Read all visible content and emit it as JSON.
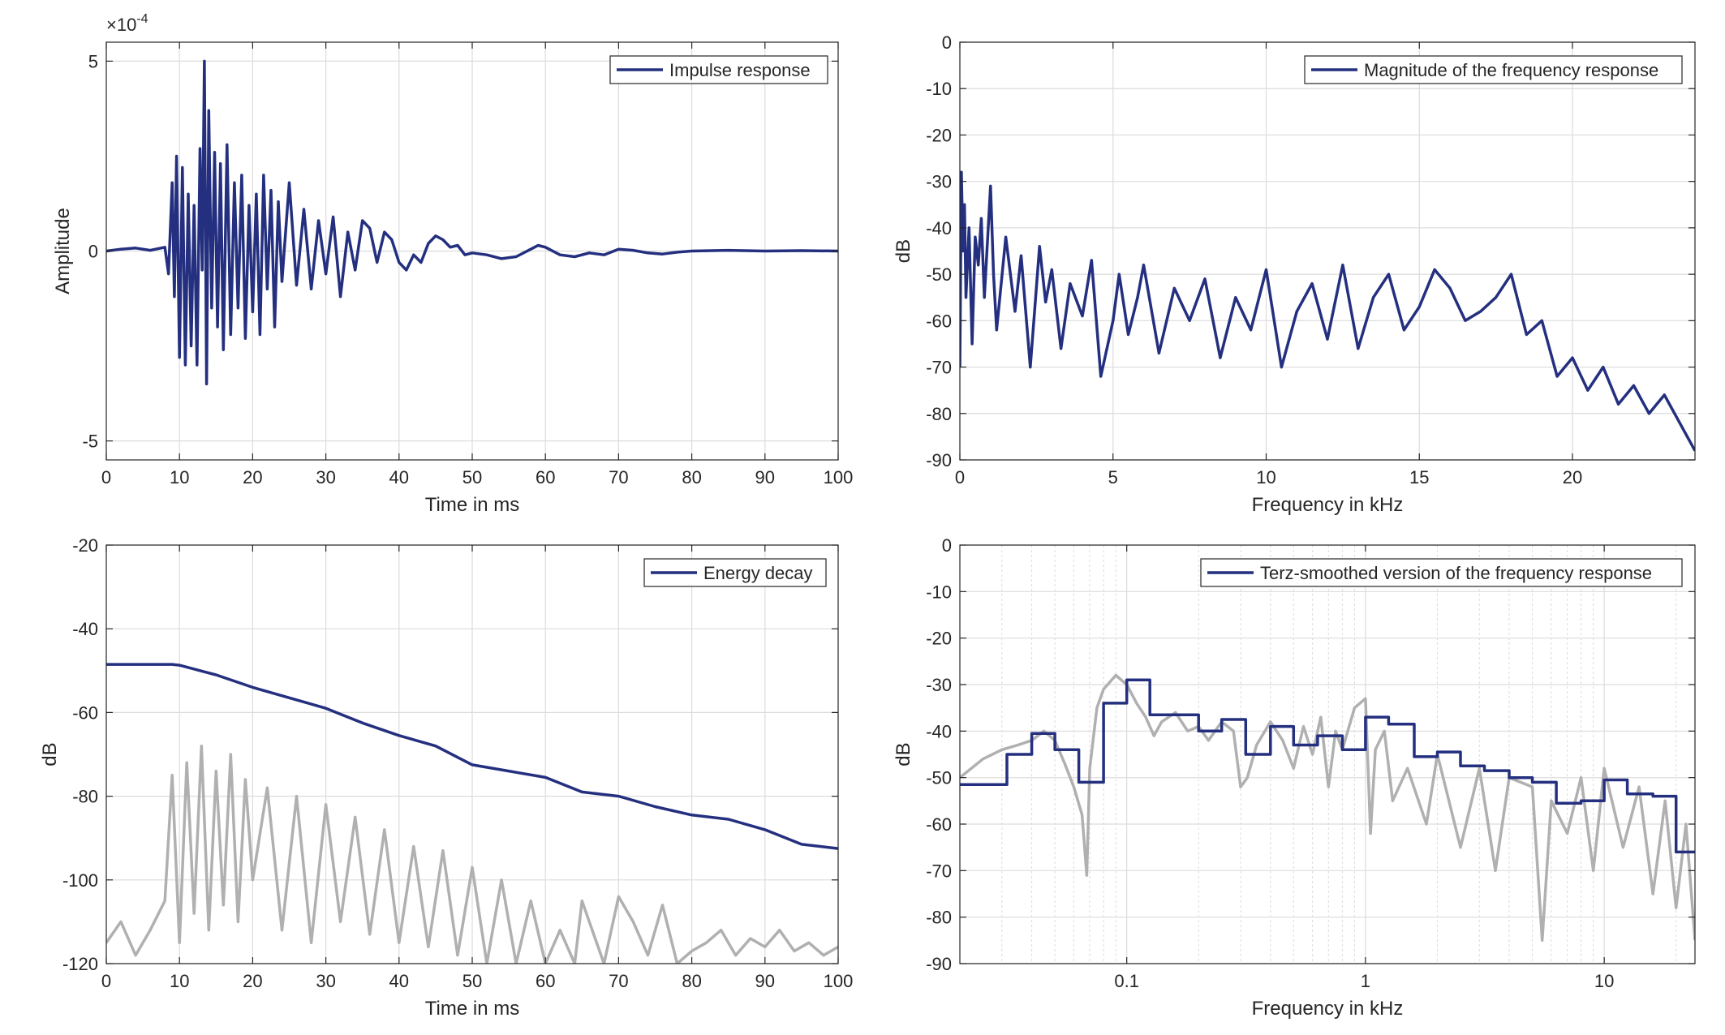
{
  "colors": {
    "series_main": "#24307f",
    "series_gray": "#b0b0b0",
    "grid": "#dcdcdc",
    "axis": "#262626"
  },
  "chart_data": [
    {
      "id": "impulse",
      "type": "line",
      "xlabel": "Time in ms",
      "ylabel": "Amplitude",
      "exponent_label": "×10",
      "exponent_power": "-4",
      "xlim": [
        0,
        100
      ],
      "ylim": [
        -5.5,
        5.5
      ],
      "xticks": [
        0,
        10,
        20,
        30,
        40,
        50,
        60,
        70,
        80,
        90,
        100
      ],
      "yticks": [
        -5,
        0,
        5
      ],
      "ytick_labels": [
        "-5",
        "0",
        "5"
      ],
      "legend": {
        "position": "top-right",
        "entries": [
          "Impulse response"
        ]
      },
      "series": [
        {
          "name": "Impulse response",
          "color_key": "series_main",
          "x": [
            0,
            2,
            4,
            6,
            8,
            8.5,
            9,
            9.3,
            9.6,
            10,
            10.4,
            10.8,
            11.2,
            11.6,
            12,
            12.4,
            12.8,
            13.1,
            13.4,
            13.7,
            14,
            14.4,
            14.8,
            15.2,
            15.6,
            16,
            16.5,
            17,
            17.5,
            18,
            18.5,
            19,
            19.5,
            20,
            20.5,
            21,
            21.5,
            22,
            22.5,
            23,
            23.5,
            24,
            25,
            26,
            27,
            28,
            29,
            30,
            31,
            32,
            33,
            34,
            35,
            36,
            37,
            38,
            39,
            40,
            41,
            42,
            43,
            44,
            45,
            46,
            47,
            48,
            49,
            50,
            52,
            54,
            56,
            58,
            59,
            60,
            62,
            64,
            66,
            68,
            70,
            72,
            74,
            76,
            78,
            80,
            85,
            90,
            95,
            100
          ],
          "y": [
            0,
            0.05,
            0.08,
            0.02,
            0.1,
            -0.6,
            1.8,
            -1.2,
            2.5,
            -2.8,
            2.2,
            -3.0,
            1.5,
            -2.5,
            1.2,
            -3.0,
            2.7,
            -0.5,
            5.0,
            -3.5,
            3.7,
            -1.5,
            2.6,
            -2.0,
            2.3,
            -2.6,
            2.8,
            -2.2,
            1.8,
            -1.5,
            2.0,
            -2.3,
            1.2,
            -1.6,
            1.5,
            -2.2,
            2.0,
            -1.0,
            1.6,
            -2.0,
            1.3,
            -0.8,
            1.8,
            -0.9,
            1.1,
            -1.0,
            0.8,
            -0.6,
            0.9,
            -1.2,
            0.5,
            -0.5,
            0.8,
            0.6,
            -0.3,
            0.5,
            0.3,
            -0.3,
            -0.5,
            -0.1,
            -0.3,
            0.2,
            0.4,
            0.3,
            0.1,
            0.15,
            -0.1,
            -0.05,
            -0.1,
            -0.2,
            -0.15,
            0.05,
            0.15,
            0.1,
            -0.1,
            -0.15,
            -0.05,
            -0.1,
            0.05,
            0.02,
            -0.05,
            -0.08,
            -0.03,
            0.0,
            0.02,
            0.0,
            0.01,
            0.0
          ]
        }
      ]
    },
    {
      "id": "magnitude",
      "type": "line",
      "xlabel": "Frequency in kHz",
      "ylabel": "dB",
      "xlim": [
        0,
        24
      ],
      "ylim": [
        -90,
        0
      ],
      "xticks": [
        0,
        5,
        10,
        15,
        20
      ],
      "yticks": [
        -90,
        -80,
        -70,
        -60,
        -50,
        -40,
        -30,
        -20,
        -10,
        0
      ],
      "legend": {
        "position": "top-right",
        "entries": [
          "Magnitude of the frequency response"
        ]
      },
      "series": [
        {
          "name": "Magnitude of the frequency response",
          "color_key": "series_main",
          "x": [
            0,
            0.05,
            0.1,
            0.15,
            0.2,
            0.3,
            0.4,
            0.5,
            0.6,
            0.7,
            0.8,
            1.0,
            1.1,
            1.2,
            1.5,
            1.8,
            2.0,
            2.3,
            2.6,
            2.8,
            3.0,
            3.3,
            3.6,
            4.0,
            4.3,
            4.6,
            5.0,
            5.2,
            5.5,
            5.8,
            6.0,
            6.5,
            7.0,
            7.5,
            8.0,
            8.5,
            9.0,
            9.5,
            10.0,
            10.5,
            11.0,
            11.5,
            12.0,
            12.5,
            13.0,
            13.5,
            14.0,
            14.5,
            15.0,
            15.5,
            16.0,
            16.5,
            17.0,
            17.5,
            18.0,
            18.5,
            19.0,
            19.5,
            20.0,
            20.5,
            21.0,
            21.5,
            22.0,
            22.5,
            23.0,
            23.5,
            24.0
          ],
          "y": [
            -70,
            -28,
            -45,
            -35,
            -55,
            -40,
            -65,
            -42,
            -48,
            -38,
            -55,
            -31,
            -50,
            -62,
            -42,
            -58,
            -46,
            -70,
            -44,
            -56,
            -49,
            -66,
            -52,
            -59,
            -47,
            -72,
            -60,
            -50,
            -63,
            -55,
            -48,
            -67,
            -53,
            -60,
            -51,
            -68,
            -55,
            -62,
            -49,
            -70,
            -58,
            -52,
            -64,
            -48,
            -66,
            -55,
            -50,
            -62,
            -57,
            -49,
            -53,
            -60,
            -58,
            -55,
            -50,
            -63,
            -60,
            -72,
            -68,
            -75,
            -70,
            -78,
            -74,
            -80,
            -76,
            -82,
            -88
          ]
        }
      ]
    },
    {
      "id": "energy",
      "type": "line",
      "xlabel": "Time in ms",
      "ylabel": "dB",
      "xlim": [
        0,
        100
      ],
      "ylim": [
        -120,
        -20
      ],
      "xticks": [
        0,
        10,
        20,
        30,
        40,
        50,
        60,
        70,
        80,
        90,
        100
      ],
      "yticks": [
        -120,
        -100,
        -80,
        -60,
        -40,
        -20
      ],
      "legend": {
        "position": "top-right",
        "entries": [
          "Energy decay"
        ]
      },
      "series": [
        {
          "name": "Energy decay",
          "color_key": "series_main",
          "x": [
            0,
            5,
            9,
            10,
            15,
            20,
            25,
            30,
            35,
            40,
            45,
            50,
            55,
            60,
            65,
            70,
            75,
            80,
            85,
            90,
            95,
            100
          ],
          "y": [
            -48.5,
            -48.5,
            -48.5,
            -48.7,
            -51,
            -54,
            -56.5,
            -59,
            -62.5,
            -65.5,
            -68,
            -72.5,
            -74,
            -75.5,
            -79,
            -80,
            -82.5,
            -84.5,
            -85.5,
            -88,
            -91.5,
            -92.5
          ]
        },
        {
          "color_key": "series_gray",
          "x": [
            0,
            2,
            4,
            6,
            8,
            8.5,
            9,
            10,
            11,
            12,
            13,
            14,
            15,
            16,
            17,
            18,
            19,
            20,
            22,
            24,
            26,
            28,
            30,
            32,
            34,
            36,
            38,
            40,
            42,
            44,
            46,
            48,
            50,
            52,
            54,
            56,
            58,
            60,
            62,
            64,
            65,
            66,
            68,
            70,
            72,
            74,
            76,
            78,
            80,
            82,
            84,
            86,
            88,
            90,
            92,
            94,
            96,
            98,
            100
          ],
          "y": [
            -115,
            -110,
            -118,
            -112,
            -105,
            -90,
            -75,
            -115,
            -72,
            -108,
            -68,
            -112,
            -74,
            -106,
            -70,
            -110,
            -76,
            -100,
            -78,
            -112,
            -80,
            -115,
            -82,
            -110,
            -85,
            -113,
            -88,
            -115,
            -92,
            -116,
            -93,
            -118,
            -97,
            -120,
            -100,
            -120,
            -105,
            -120,
            -112,
            -120,
            -105,
            -110,
            -120,
            -104,
            -110,
            -118,
            -106,
            -120,
            -117,
            -115,
            -112,
            -118,
            -114,
            -116,
            -112,
            -117,
            -115,
            -118,
            -116
          ]
        }
      ]
    },
    {
      "id": "terz",
      "type": "line",
      "xlabel": "Frequency in kHz",
      "ylabel": "dB",
      "xscale": "log",
      "xlim": [
        0.02,
        24
      ],
      "ylim": [
        -90,
        0
      ],
      "xticks": [
        0.1,
        1,
        10
      ],
      "xtick_labels": [
        "0.1",
        "1",
        "10"
      ],
      "yticks": [
        -90,
        -80,
        -70,
        -60,
        -50,
        -40,
        -30,
        -20,
        -10,
        0
      ],
      "legend": {
        "position": "top-right",
        "entries": [
          "Terz-smoothed version of the frequency response"
        ]
      },
      "series": [
        {
          "name": "Terz-smoothed version of the frequency response",
          "color_key": "series_main",
          "step": true,
          "x": [
            0.02,
            0.0315,
            0.04,
            0.05,
            0.063,
            0.08,
            0.1,
            0.125,
            0.16,
            0.2,
            0.25,
            0.315,
            0.4,
            0.5,
            0.63,
            0.8,
            1.0,
            1.25,
            1.6,
            2.0,
            2.5,
            3.15,
            4.0,
            5.0,
            6.3,
            8.0,
            10.0,
            12.5,
            16.0,
            20.0,
            24.0
          ],
          "y": [
            -51.5,
            -45,
            -40.5,
            -44,
            -51,
            -34,
            -29,
            -36.5,
            -36.5,
            -40,
            -37.5,
            -45,
            -39,
            -43,
            -41,
            -44,
            -37,
            -38.5,
            -45.5,
            -44.5,
            -47.5,
            -48.5,
            -50,
            -51,
            -55.5,
            -55,
            -50.5,
            -53.5,
            -54,
            -66,
            -66
          ]
        },
        {
          "color_key": "series_gray",
          "x": [
            0.02,
            0.025,
            0.03,
            0.035,
            0.04,
            0.045,
            0.05,
            0.055,
            0.06,
            0.065,
            0.068,
            0.07,
            0.075,
            0.08,
            0.09,
            0.1,
            0.11,
            0.12,
            0.13,
            0.14,
            0.16,
            0.18,
            0.2,
            0.22,
            0.25,
            0.28,
            0.3,
            0.32,
            0.35,
            0.4,
            0.45,
            0.5,
            0.55,
            0.6,
            0.65,
            0.7,
            0.75,
            0.8,
            0.9,
            1.0,
            1.05,
            1.1,
            1.2,
            1.3,
            1.5,
            1.8,
            2.0,
            2.5,
            3.0,
            3.5,
            4.0,
            5.0,
            5.5,
            6.0,
            7.0,
            8.0,
            9.0,
            10.0,
            12.0,
            14.0,
            16.0,
            18.0,
            20.0,
            22.0,
            24.0
          ],
          "y": [
            -50,
            -46,
            -44,
            -43,
            -42,
            -40,
            -42,
            -47,
            -52,
            -58,
            -71,
            -48,
            -35,
            -31,
            -28,
            -30,
            -34,
            -37,
            -41,
            -38,
            -36,
            -40,
            -39,
            -42,
            -38,
            -40,
            -52,
            -50,
            -43,
            -38,
            -42,
            -48,
            -39,
            -45,
            -37,
            -52,
            -40,
            -44,
            -35,
            -33,
            -62,
            -44,
            -40,
            -55,
            -48,
            -60,
            -45,
            -65,
            -48,
            -70,
            -50,
            -52,
            -85,
            -55,
            -62,
            -50,
            -70,
            -48,
            -65,
            -52,
            -75,
            -55,
            -78,
            -60,
            -85
          ]
        }
      ]
    }
  ]
}
